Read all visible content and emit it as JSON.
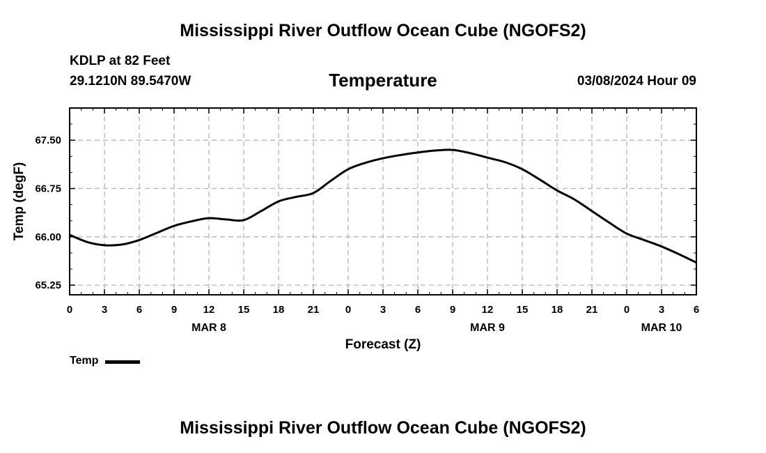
{
  "header": {
    "main_title": "Mississippi River Outflow Ocean Cube (NGOFS2)",
    "station": "KDLP at 82 Feet",
    "location": "29.1210N  89.5470W",
    "chart_title": "Temperature",
    "datetime": "03/08/2024 Hour 09"
  },
  "footer": {
    "main_title": "Mississippi River Outflow Ocean Cube (NGOFS2)"
  },
  "colors": {
    "line": "#000000",
    "grid": "#b4b4b4",
    "axis": "#000000"
  },
  "chart_data": {
    "type": "line",
    "title": "Temperature",
    "xlabel": "Forecast (Z)",
    "ylabel": "Temp (degF)",
    "xlim": [
      0,
      54
    ],
    "ylim": [
      65.1,
      68.0
    ],
    "yticks": [
      65.25,
      66.0,
      66.75,
      67.5
    ],
    "ytick_labels": [
      "65.25",
      "66.00",
      "66.75",
      "67.50"
    ],
    "xticks": [
      0,
      3,
      6,
      9,
      12,
      15,
      18,
      21,
      24,
      27,
      30,
      33,
      36,
      39,
      42,
      45,
      48,
      51,
      54
    ],
    "xtick_labels": [
      "0",
      "3",
      "6",
      "9",
      "12",
      "15",
      "18",
      "21",
      "0",
      "3",
      "6",
      "9",
      "12",
      "15",
      "18",
      "21",
      "0",
      "3",
      "6"
    ],
    "date_labels": [
      {
        "x": 12,
        "label": "MAR 8"
      },
      {
        "x": 36,
        "label": "MAR 9"
      },
      {
        "x": 51,
        "label": "MAR 10"
      }
    ],
    "grid": true,
    "legend": "bottom-left",
    "series": [
      {
        "name": "Temp",
        "x": [
          0,
          1.5,
          3,
          4.5,
          6,
          7.5,
          9,
          10.5,
          12,
          13.5,
          15,
          16.5,
          18,
          19.5,
          21,
          22.5,
          24,
          25.5,
          27,
          28.5,
          30,
          31.5,
          33,
          34.5,
          36,
          37.5,
          39,
          40.5,
          42,
          43.5,
          45,
          46.5,
          48,
          49.5,
          51,
          52.5,
          54
        ],
        "values": [
          66.03,
          65.92,
          65.87,
          65.88,
          65.95,
          66.06,
          66.17,
          66.24,
          66.29,
          66.27,
          66.26,
          66.4,
          66.55,
          66.62,
          66.68,
          66.87,
          67.05,
          67.15,
          67.22,
          67.27,
          67.31,
          67.34,
          67.35,
          67.3,
          67.23,
          67.16,
          67.05,
          66.89,
          66.72,
          66.58,
          66.4,
          66.22,
          66.05,
          65.95,
          65.85,
          65.73,
          65.6
        ]
      }
    ]
  }
}
